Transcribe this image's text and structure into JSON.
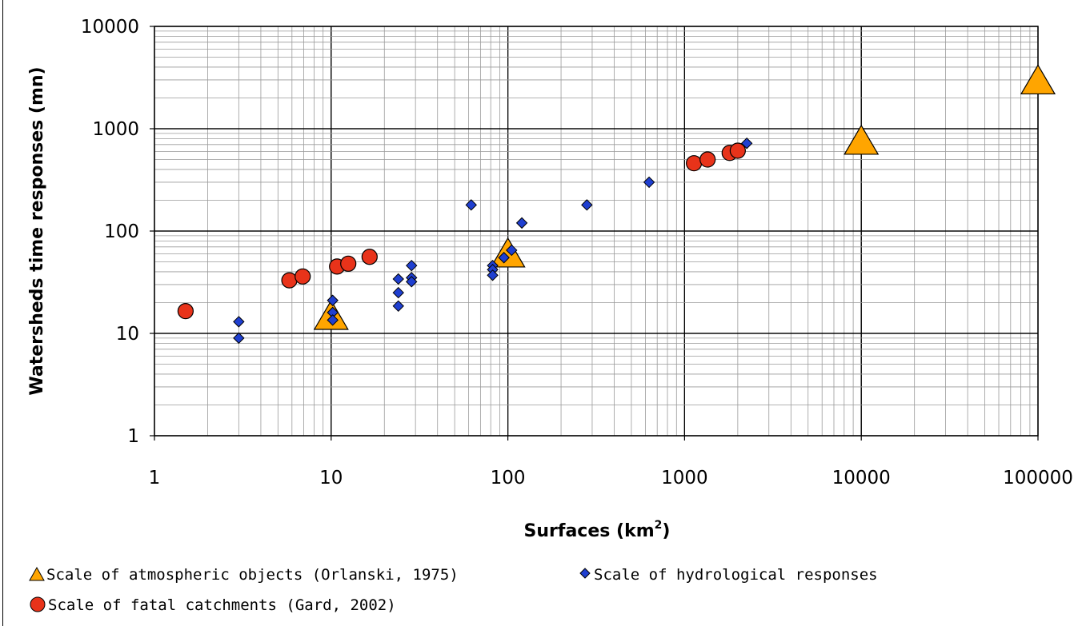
{
  "chart_data": {
    "type": "scatter",
    "xscale": "log",
    "yscale": "log",
    "xlim": [
      1,
      100000
    ],
    "ylim": [
      1,
      10000
    ],
    "grid": true,
    "xlabel": "Surfaces (km",
    "xlabel_sup": "2",
    "xlabel_end": ")",
    "ylabel": "Watersheds time responses (mn)",
    "x_ticks": [
      "1",
      "10",
      "100",
      "1000",
      "10000",
      "100000"
    ],
    "y_ticks": [
      "1",
      "10",
      "100",
      "1000",
      "10000"
    ],
    "legend_position": "bottom",
    "series": [
      {
        "name": "Scale of atmospheric objects (Orlanski, 1975)",
        "marker": "triangle",
        "color": "#FFA500",
        "points": [
          {
            "x": 10,
            "y": 14
          },
          {
            "x": 100,
            "y": 57
          },
          {
            "x": 10000,
            "y": 720
          },
          {
            "x": 100000,
            "y": 2800
          }
        ]
      },
      {
        "name": "Scale of hydrological responses",
        "marker": "diamond",
        "color": "#1F3FD0",
        "points": [
          {
            "x": 3,
            "y": 13
          },
          {
            "x": 3,
            "y": 9
          },
          {
            "x": 10.2,
            "y": 21
          },
          {
            "x": 10.2,
            "y": 16
          },
          {
            "x": 10.2,
            "y": 13.5
          },
          {
            "x": 24,
            "y": 34
          },
          {
            "x": 24,
            "y": 25
          },
          {
            "x": 24,
            "y": 18.5
          },
          {
            "x": 28.5,
            "y": 46
          },
          {
            "x": 28.5,
            "y": 35
          },
          {
            "x": 28.5,
            "y": 32
          },
          {
            "x": 62,
            "y": 180
          },
          {
            "x": 82,
            "y": 46
          },
          {
            "x": 82,
            "y": 42
          },
          {
            "x": 82,
            "y": 37
          },
          {
            "x": 95,
            "y": 55
          },
          {
            "x": 105,
            "y": 65
          },
          {
            "x": 120,
            "y": 120
          },
          {
            "x": 280,
            "y": 180
          },
          {
            "x": 630,
            "y": 300
          },
          {
            "x": 2250,
            "y": 720
          }
        ]
      },
      {
        "name": "Scale of fatal catchments (Gard, 2002)",
        "marker": "circle",
        "color": "#E8331A",
        "points": [
          {
            "x": 1.5,
            "y": 16.5
          },
          {
            "x": 5.8,
            "y": 33
          },
          {
            "x": 6.9,
            "y": 36
          },
          {
            "x": 10.8,
            "y": 45
          },
          {
            "x": 12.5,
            "y": 48
          },
          {
            "x": 16.5,
            "y": 56
          },
          {
            "x": 1130,
            "y": 460
          },
          {
            "x": 1350,
            "y": 500
          },
          {
            "x": 1800,
            "y": 580
          },
          {
            "x": 2000,
            "y": 610
          }
        ]
      }
    ]
  }
}
